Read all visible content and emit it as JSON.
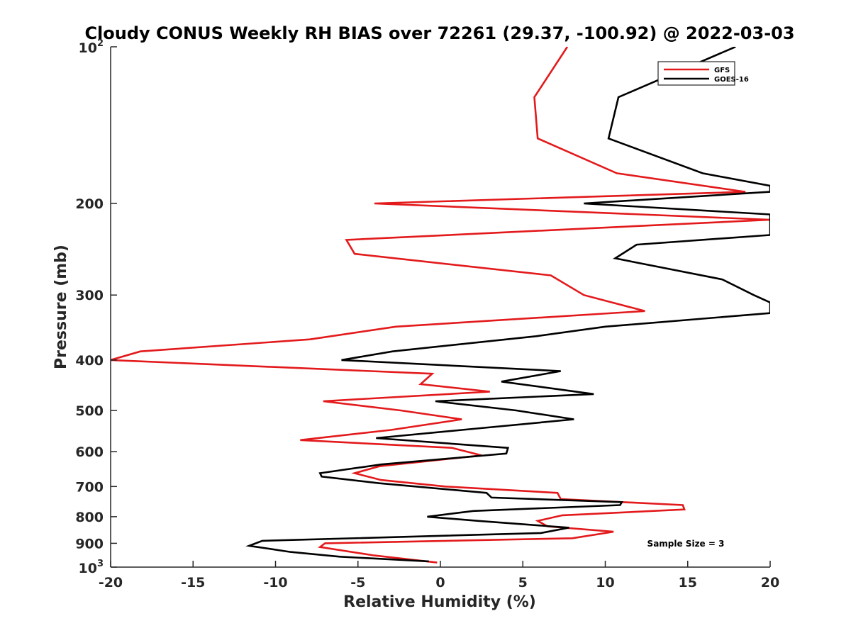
{
  "chart_data": {
    "type": "line",
    "title": "Cloudy CONUS Weekly RH BIAS over 72261 (29.37, -100.92) @ 2022-03-03",
    "xlabel": "Relative Humidity (%)",
    "ylabel": "Pressure (mb)",
    "xlim": [
      -20,
      20
    ],
    "ylim": [
      100,
      1000
    ],
    "y_scale": "log",
    "y_reversed": true,
    "x_ticks": [
      "-20",
      "-15",
      "-10",
      "-5",
      "0",
      "5",
      "10",
      "15",
      "20"
    ],
    "y_tick_values": [
      100,
      200,
      300,
      400,
      500,
      600,
      700,
      800,
      900,
      1000
    ],
    "y_tick_labels": [
      "",
      "200",
      "300",
      "400",
      "500",
      "600",
      "700",
      "800",
      "900",
      ""
    ],
    "y_tick_base_labels": [
      {
        "value": 100,
        "base": "10",
        "exp": "2"
      },
      {
        "value": 1000,
        "base": "10",
        "exp": "3"
      }
    ],
    "grid": false,
    "legend_position": "top-right",
    "annotation": "Sample Size = 3",
    "series": [
      {
        "name": "GFS",
        "color": "#e31a1c",
        "points": [
          [
            7.7,
            100
          ],
          [
            5.7,
            125
          ],
          [
            5.9,
            150
          ],
          [
            10.7,
            175
          ],
          [
            18.5,
            190
          ],
          [
            -4.0,
            200
          ],
          [
            20.0,
            215
          ],
          [
            -5.7,
            235
          ],
          [
            -5.2,
            250
          ],
          [
            6.7,
            275
          ],
          [
            8.7,
            300
          ],
          [
            12.4,
            322
          ],
          [
            -2.7,
            345
          ],
          [
            -7.9,
            365
          ],
          [
            -18.2,
            385
          ],
          [
            -20.0,
            400
          ],
          [
            -0.5,
            425
          ],
          [
            -1.2,
            445
          ],
          [
            3.0,
            460
          ],
          [
            -7.1,
            480
          ],
          [
            -2.4,
            500
          ],
          [
            1.3,
            520
          ],
          [
            -3.0,
            545
          ],
          [
            -8.5,
            570
          ],
          [
            0.7,
            590
          ],
          [
            2.5,
            610
          ],
          [
            -3.7,
            640
          ],
          [
            -5.2,
            660
          ],
          [
            -3.6,
            680
          ],
          [
            0.3,
            700
          ],
          [
            7.1,
            720
          ],
          [
            7.3,
            740
          ],
          [
            14.7,
            760
          ],
          [
            14.8,
            775
          ],
          [
            7.4,
            795
          ],
          [
            5.9,
            815
          ],
          [
            6.5,
            835
          ],
          [
            10.5,
            855
          ],
          [
            8.0,
            880
          ],
          [
            -7.0,
            900
          ],
          [
            -7.3,
            915
          ],
          [
            -4.0,
            950
          ],
          [
            -0.2,
            980
          ]
        ]
      },
      {
        "name": "GOES-16",
        "color": "#000000",
        "points": [
          [
            17.9,
            100
          ],
          [
            10.8,
            125
          ],
          [
            10.2,
            150
          ],
          [
            15.9,
            175
          ],
          [
            20.0,
            185
          ],
          [
            20.0,
            190
          ],
          [
            8.7,
            200
          ],
          [
            20.0,
            210
          ],
          [
            20.0,
            230
          ],
          [
            11.9,
            240
          ],
          [
            10.6,
            255
          ],
          [
            17.1,
            280
          ],
          [
            19.0,
            300
          ],
          [
            20.0,
            310
          ],
          [
            20.0,
            325
          ],
          [
            10.0,
            345
          ],
          [
            5.8,
            360
          ],
          [
            -2.9,
            385
          ],
          [
            -6.0,
            400
          ],
          [
            7.3,
            420
          ],
          [
            3.7,
            440
          ],
          [
            9.3,
            465
          ],
          [
            -0.3,
            480
          ],
          [
            4.6,
            500
          ],
          [
            8.1,
            520
          ],
          [
            1.3,
            545
          ],
          [
            -3.9,
            565
          ],
          [
            4.1,
            590
          ],
          [
            4.0,
            605
          ],
          [
            -3.6,
            635
          ],
          [
            -7.3,
            660
          ],
          [
            -7.2,
            670
          ],
          [
            -3.7,
            690
          ],
          [
            2.8,
            720
          ],
          [
            3.1,
            735
          ],
          [
            11.0,
            750
          ],
          [
            10.9,
            760
          ],
          [
            2.0,
            780
          ],
          [
            -0.8,
            800
          ],
          [
            2.3,
            815
          ],
          [
            7.8,
            840
          ],
          [
            6.1,
            860
          ],
          [
            -10.8,
            890
          ],
          [
            -11.6,
            910
          ],
          [
            -9.1,
            935
          ],
          [
            -6.1,
            955
          ],
          [
            -0.7,
            975
          ]
        ]
      }
    ]
  }
}
